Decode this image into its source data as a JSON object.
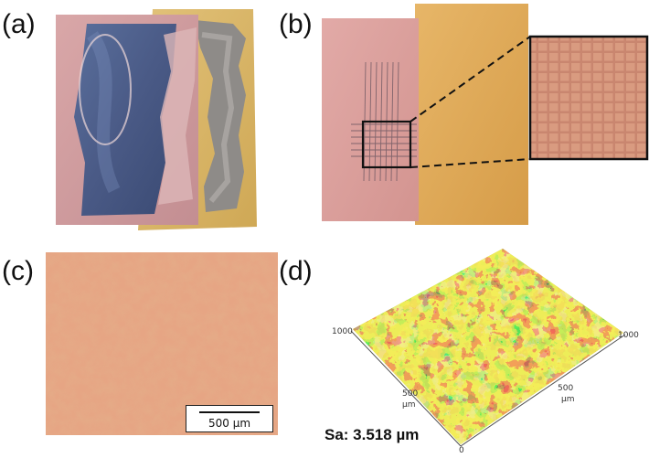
{
  "panels": {
    "a": {
      "label": "(a)"
    },
    "b": {
      "label": "(b)"
    },
    "c": {
      "label": "(c)",
      "scale_bar": "500 µm"
    },
    "d": {
      "label": "(d)",
      "sa_text": "Sa: 3.518 µm",
      "axis_left": {
        "max": "1000",
        "mid": "500",
        "unit": "µm"
      },
      "axis_right": {
        "max": "1000",
        "mid": "500",
        "unit": "µm"
      },
      "origin": "0"
    }
  }
}
